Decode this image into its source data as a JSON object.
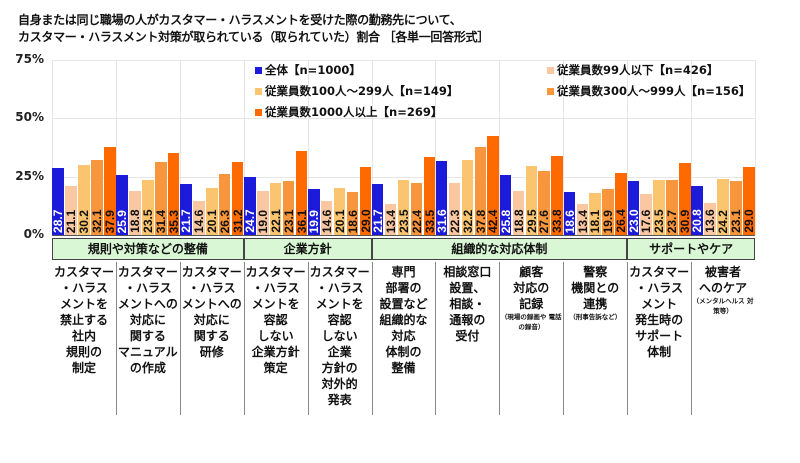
{
  "title": {
    "line1": "自身または同じ職場の人がカスタマー・ハラスメントを受けた際の勤務先について、",
    "line2": "カスタマー・ハラスメント対策が取られている（取られていた）割合 ［各単一回答形式］"
  },
  "colors": {
    "all": "#1b1bd9",
    "s99": "#f9c8a2",
    "s100_299": "#fbc56f",
    "s300_999": "#f7963c",
    "s1000": "#ff6a00",
    "band_fill": "#d9f7d4"
  },
  "chart_data": {
    "type": "bar",
    "title": "自身または同じ職場の人がカスタマー・ハラスメントを受けた際の勤務先について、カスタマー・ハラスメント対策が取られている（取られていた）割合 ［各単一回答形式］",
    "xlabel": "",
    "ylabel": "",
    "ylim": [
      0,
      75
    ],
    "yticks": [
      "0%",
      "25%",
      "50%",
      "75%"
    ],
    "grid": true,
    "legend_position": "top-center (inside plot)",
    "category_groups": [
      {
        "label": "規則や対策などの整備",
        "span": [
          0,
          2
        ]
      },
      {
        "label": "企業方針",
        "span": [
          3,
          4
        ]
      },
      {
        "label": "組織的な対応体制",
        "span": [
          5,
          8
        ]
      },
      {
        "label": "サポートやケア",
        "span": [
          9,
          10
        ]
      }
    ],
    "categories": [
      "カスタマー・ハラスメントを禁止する社内規則の制定",
      "カスタマー・ハラスメントへの対応に関するマニュアルの作成",
      "カスタマー・ハラスメントへの対応に関する研修",
      "カスタマー・ハラスメントを容認しない企業方針策定",
      "カスタマー・ハラスメントを容認しない企業方針の対外的発表",
      "専門部署の設置など組織的な対応体制の整備",
      "相談窓口設置、相談・通報の受付",
      "顧客対応の記録（現場の録画や電話の録音）",
      "警察機関との連携（刑事告訴など）",
      "カスタマー・ハラスメント発生時のサポート体制",
      "被害者へのケア（メンタルヘルス対策等）"
    ],
    "series": [
      {
        "name": "全体【n=1000】",
        "color": "#1b1bd9",
        "values": [
          28.7,
          25.9,
          21.7,
          24.7,
          19.9,
          21.7,
          31.6,
          25.8,
          18.6,
          23.0,
          20.8
        ]
      },
      {
        "name": "従業員数99人以下【n=426】",
        "color": "#f9c8a2",
        "values": [
          21.1,
          18.8,
          14.6,
          19.0,
          14.6,
          13.4,
          22.3,
          18.8,
          13.4,
          17.6,
          13.6
        ]
      },
      {
        "name": "従業員数100人～299人【n=149】",
        "color": "#fbc56f",
        "values": [
          30.2,
          23.5,
          20.1,
          22.1,
          20.1,
          23.5,
          32.2,
          29.5,
          18.1,
          23.5,
          24.2
        ]
      },
      {
        "name": "従業員数300人～999人【n=156】",
        "color": "#f7963c",
        "values": [
          32.1,
          31.4,
          26.3,
          23.1,
          18.6,
          22.4,
          37.8,
          27.6,
          19.9,
          23.7,
          23.1
        ]
      },
      {
        "name": "従業員数1000人以上【n=269】",
        "color": "#ff6a00",
        "values": [
          37.9,
          35.3,
          31.2,
          36.1,
          29.0,
          33.5,
          42.4,
          33.8,
          26.4,
          30.9,
          29.0
        ]
      }
    ]
  },
  "axis": {
    "ticks": [
      {
        "label": "75%",
        "value": 75
      },
      {
        "label": "50%",
        "value": 50
      },
      {
        "label": "25%",
        "value": 25
      },
      {
        "label": "0%",
        "value": 0
      }
    ]
  },
  "legend": [
    {
      "label": "全体【n=1000】",
      "color": "#1b1bd9"
    },
    {
      "label": "従業員数99人以下【n=426】",
      "color": "#f9c8a2"
    },
    {
      "label": "従業員数100人～299人【n=149】",
      "color": "#fbc56f"
    },
    {
      "label": "従業員数300人～999人【n=156】",
      "color": "#f7963c"
    },
    {
      "label": "従業員数1000人以上【n=269】",
      "color": "#ff6a00"
    }
  ],
  "bands": [
    {
      "label": "規則や対策などの整備"
    },
    {
      "label": "企業方針"
    },
    {
      "label": "組織的な対応体制"
    },
    {
      "label": "サポートやケア"
    }
  ],
  "category_labels": [
    {
      "lines": [
        "カスタマー",
        "・ハラス",
        "メントを",
        "禁止する",
        "社内",
        "規則の",
        "制定"
      ],
      "note": ""
    },
    {
      "lines": [
        "カスタマー",
        "・ハラス",
        "メントへの",
        "対応に",
        "関する",
        "マニュアル",
        "の作成"
      ],
      "note": ""
    },
    {
      "lines": [
        "カスタマー",
        "・ハラス",
        "メントへの",
        "対応に",
        "関する",
        "研修"
      ],
      "note": ""
    },
    {
      "lines": [
        "カスタマー",
        "・ハラス",
        "メントを",
        "容認",
        "しない",
        "企業方針",
        "策定"
      ],
      "note": ""
    },
    {
      "lines": [
        "カスタマー",
        "・ハラス",
        "メントを",
        "容認",
        "しない",
        "企業",
        "方針の",
        "対外的",
        "発表"
      ],
      "note": ""
    },
    {
      "lines": [
        "専門",
        "部署の",
        "設置など",
        "組織的な",
        "対応",
        "体制の",
        "整備"
      ],
      "note": ""
    },
    {
      "lines": [
        "相談窓口",
        "設置、",
        "相談・",
        "通報の",
        "受付"
      ],
      "note": ""
    },
    {
      "lines": [
        "顧客",
        "対応の",
        "記録"
      ],
      "note": "（現場の録画や 電話の録音）"
    },
    {
      "lines": [
        "警察",
        "機関との",
        "連携"
      ],
      "note": "（刑事告訴など）"
    },
    {
      "lines": [
        "カスタマー",
        "・ハラス",
        "メント",
        "発生時の",
        "サポート",
        "体制"
      ],
      "note": ""
    },
    {
      "lines": [
        "被害者",
        "へのケア"
      ],
      "note": "（メンタルヘルス 対策等）"
    }
  ]
}
